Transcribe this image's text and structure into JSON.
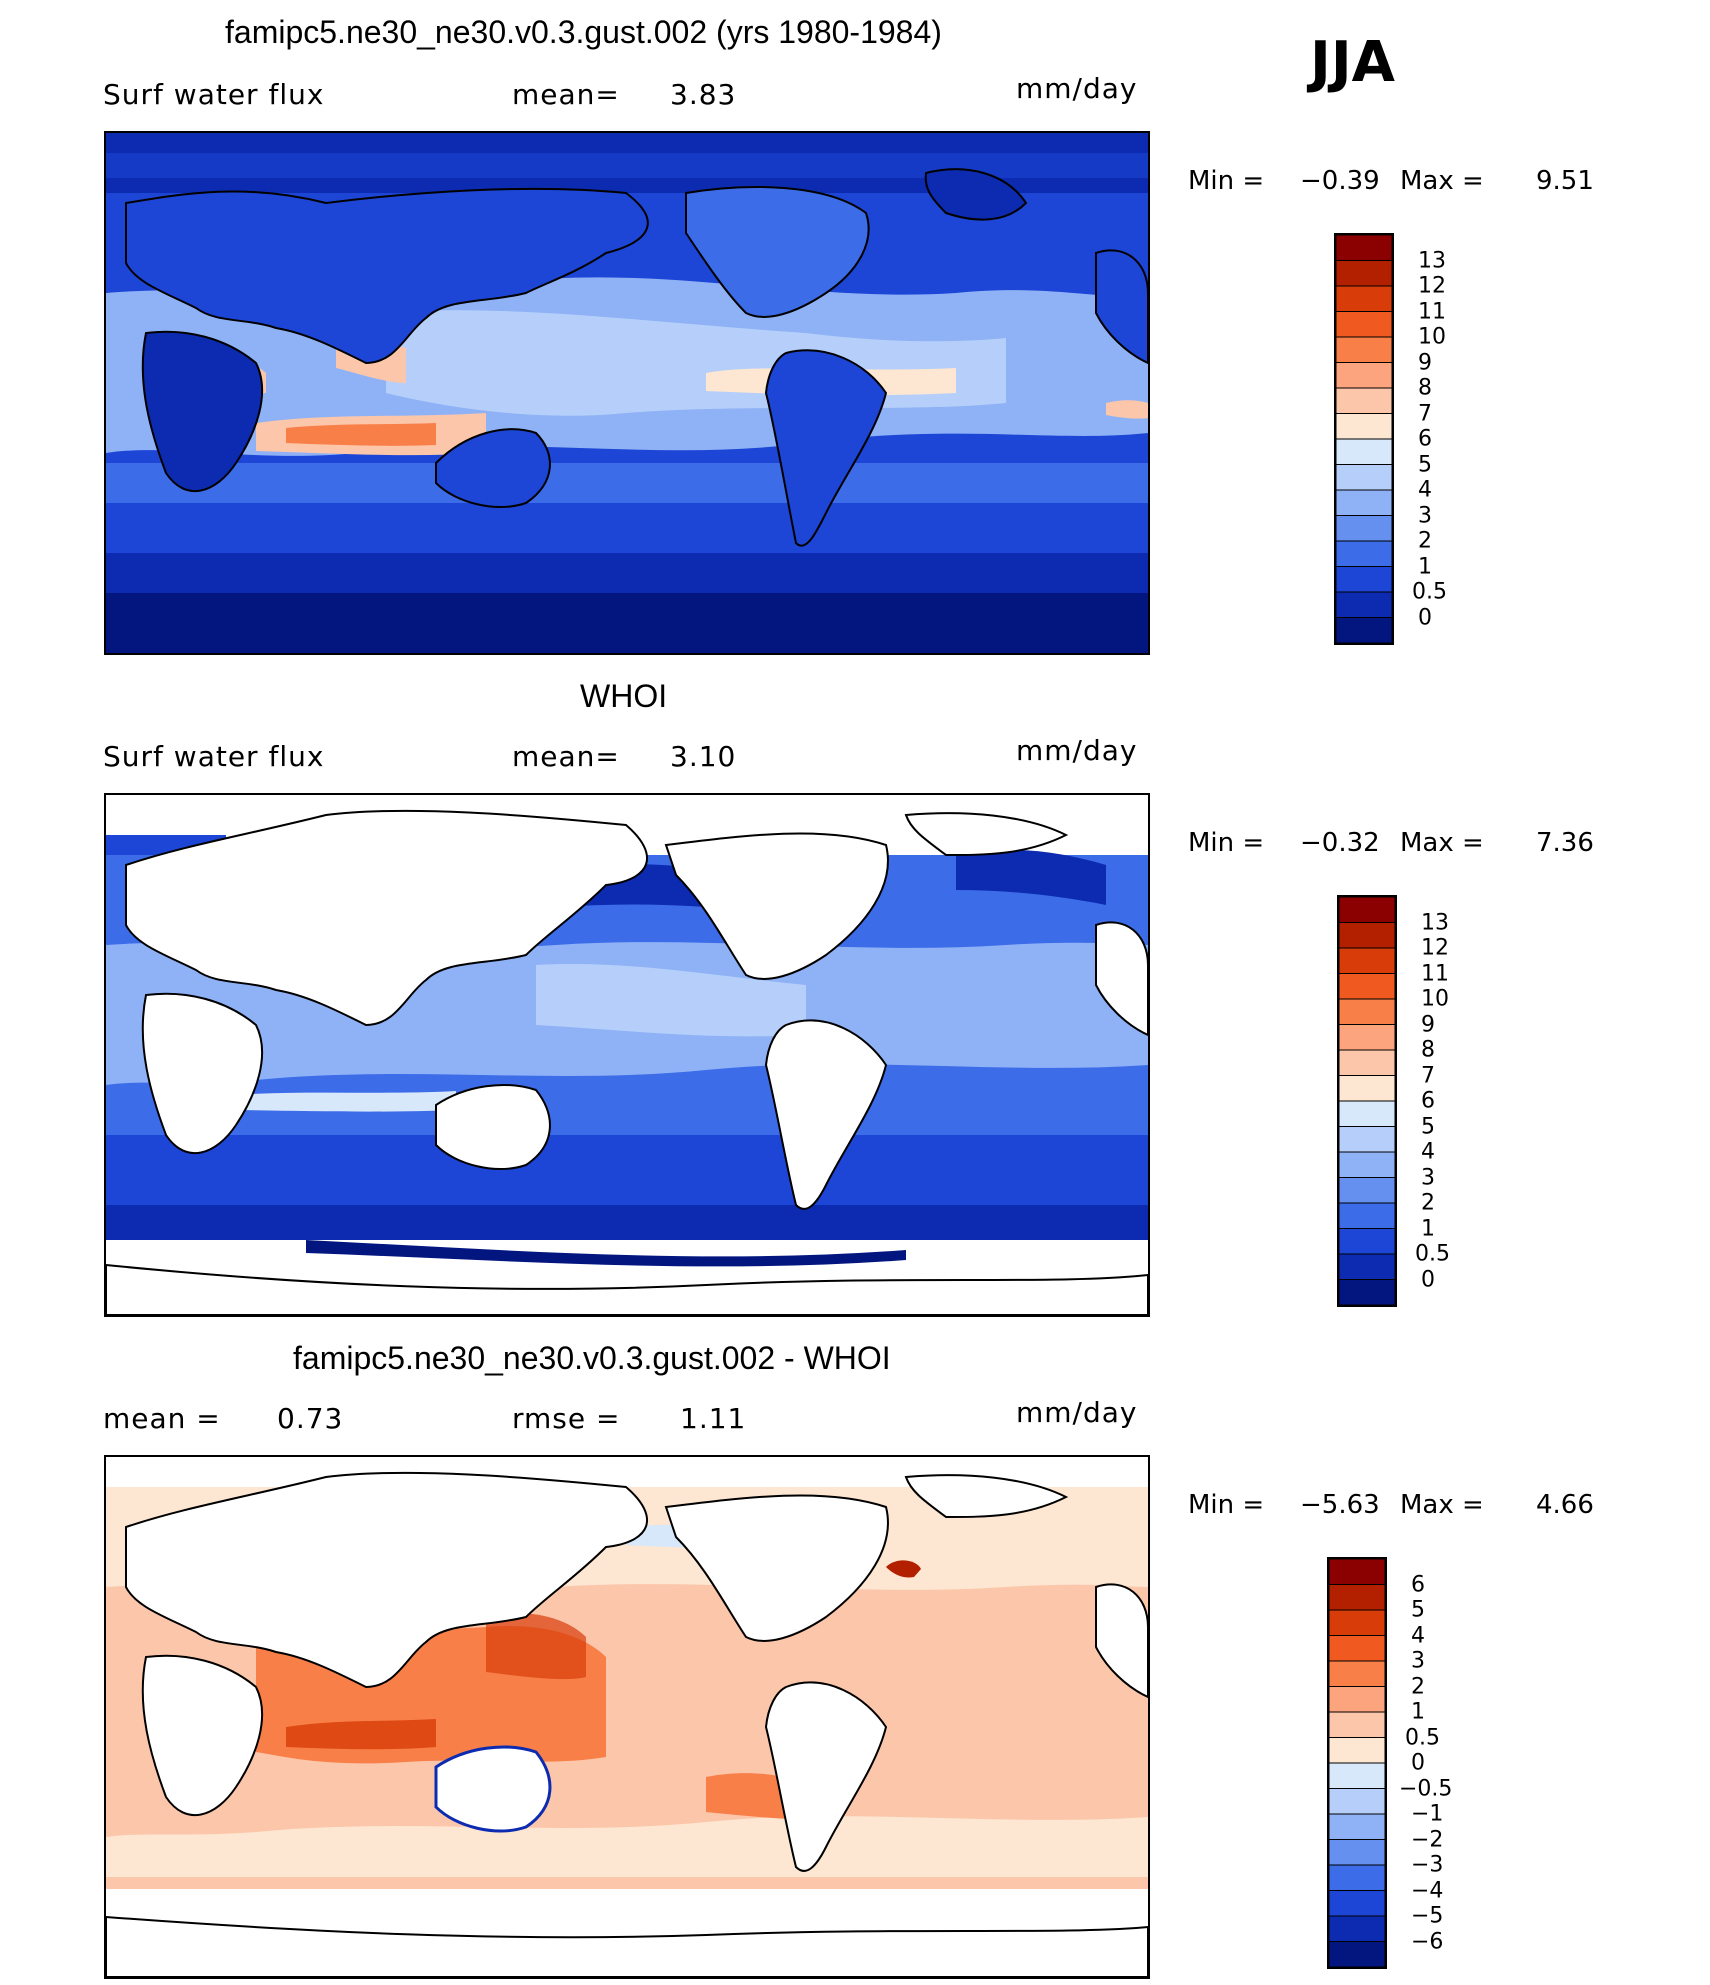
{
  "season": "JJA",
  "panels": [
    {
      "title": "famipc5.ne30_ne30.v0.3.gust.002 (yrs 1980-1984)",
      "left_label": "Surf  water  flux",
      "mid_label": "mean=",
      "mid_value": "3.83",
      "right_label": "",
      "right_value": "",
      "units": "mm/day",
      "min_label": "Min  =",
      "min_value": "−0.39",
      "max_label": "Max  =",
      "max_value": "9.51",
      "colorbar": {
        "levels": [
          "13",
          "12",
          "11",
          "10",
          "9",
          "8",
          "7",
          "6",
          "5",
          "4",
          "3",
          "2",
          "1",
          "0.5",
          "0"
        ],
        "colors": [
          "#8b0000",
          "#b22000",
          "#d83c08",
          "#f05a20",
          "#f87f48",
          "#fba47e",
          "#fcc6aa",
          "#fde6d2",
          "#d8e8fb",
          "#b6cffa",
          "#8fb2f6",
          "#6590f0",
          "#3c6ce8",
          "#1d46d6",
          "#0c2bb0",
          "#031680"
        ]
      }
    },
    {
      "title": "WHOI",
      "left_label": "Surf  water  flux",
      "mid_label": "mean=",
      "mid_value": "3.10",
      "right_label": "",
      "right_value": "",
      "units": "mm/day",
      "min_label": "Min  =",
      "min_value": "−0.32",
      "max_label": "Max  =",
      "max_value": "7.36",
      "colorbar": {
        "levels": [
          "13",
          "12",
          "11",
          "10",
          "9",
          "8",
          "7",
          "6",
          "5",
          "4",
          "3",
          "2",
          "1",
          "0.5",
          "0"
        ],
        "colors": [
          "#8b0000",
          "#b22000",
          "#d83c08",
          "#f05a20",
          "#f87f48",
          "#fba47e",
          "#fcc6aa",
          "#fde6d2",
          "#d8e8fb",
          "#b6cffa",
          "#8fb2f6",
          "#6590f0",
          "#3c6ce8",
          "#1d46d6",
          "#0c2bb0",
          "#031680"
        ]
      }
    },
    {
      "title": "famipc5.ne30_ne30.v0.3.gust.002 - WHOI",
      "left_label": "mean  =",
      "left_value": "0.73",
      "mid_label": "rmse  =",
      "mid_value": "1.11",
      "units": "mm/day",
      "min_label": "Min  =",
      "min_value": "−5.63",
      "max_label": "Max  =",
      "max_value": "4.66",
      "colorbar": {
        "levels": [
          "6",
          "5",
          "4",
          "3",
          "2",
          "1",
          "0.5",
          "0",
          "−0.5",
          "−1",
          "−2",
          "−3",
          "−4",
          "−5",
          "−6"
        ],
        "colors": [
          "#8b0000",
          "#b22000",
          "#d83c08",
          "#f05a20",
          "#f87f48",
          "#fba47e",
          "#fcc6aa",
          "#fde6d2",
          "#d8e8fb",
          "#b6cffa",
          "#8fb2f6",
          "#6590f0",
          "#3c6ce8",
          "#1d46d6",
          "#0c2bb0",
          "#031680"
        ]
      }
    }
  ],
  "map_colors": {
    "ocean_deep": "#031680",
    "ocean_dark": "#0c2bb0",
    "ocean_mid": "#1d46d6",
    "ocean_blue": "#3c6ce8",
    "ocean_light": "#8fb2f6",
    "ocean_pale": "#b6cffa",
    "warm_pale": "#fde6d2",
    "warm_light": "#fcc6aa",
    "warm_mid": "#f87f48",
    "warm_strong": "#d83c08",
    "land_white": "#ffffff",
    "cool_pale": "#d8e8fb"
  }
}
